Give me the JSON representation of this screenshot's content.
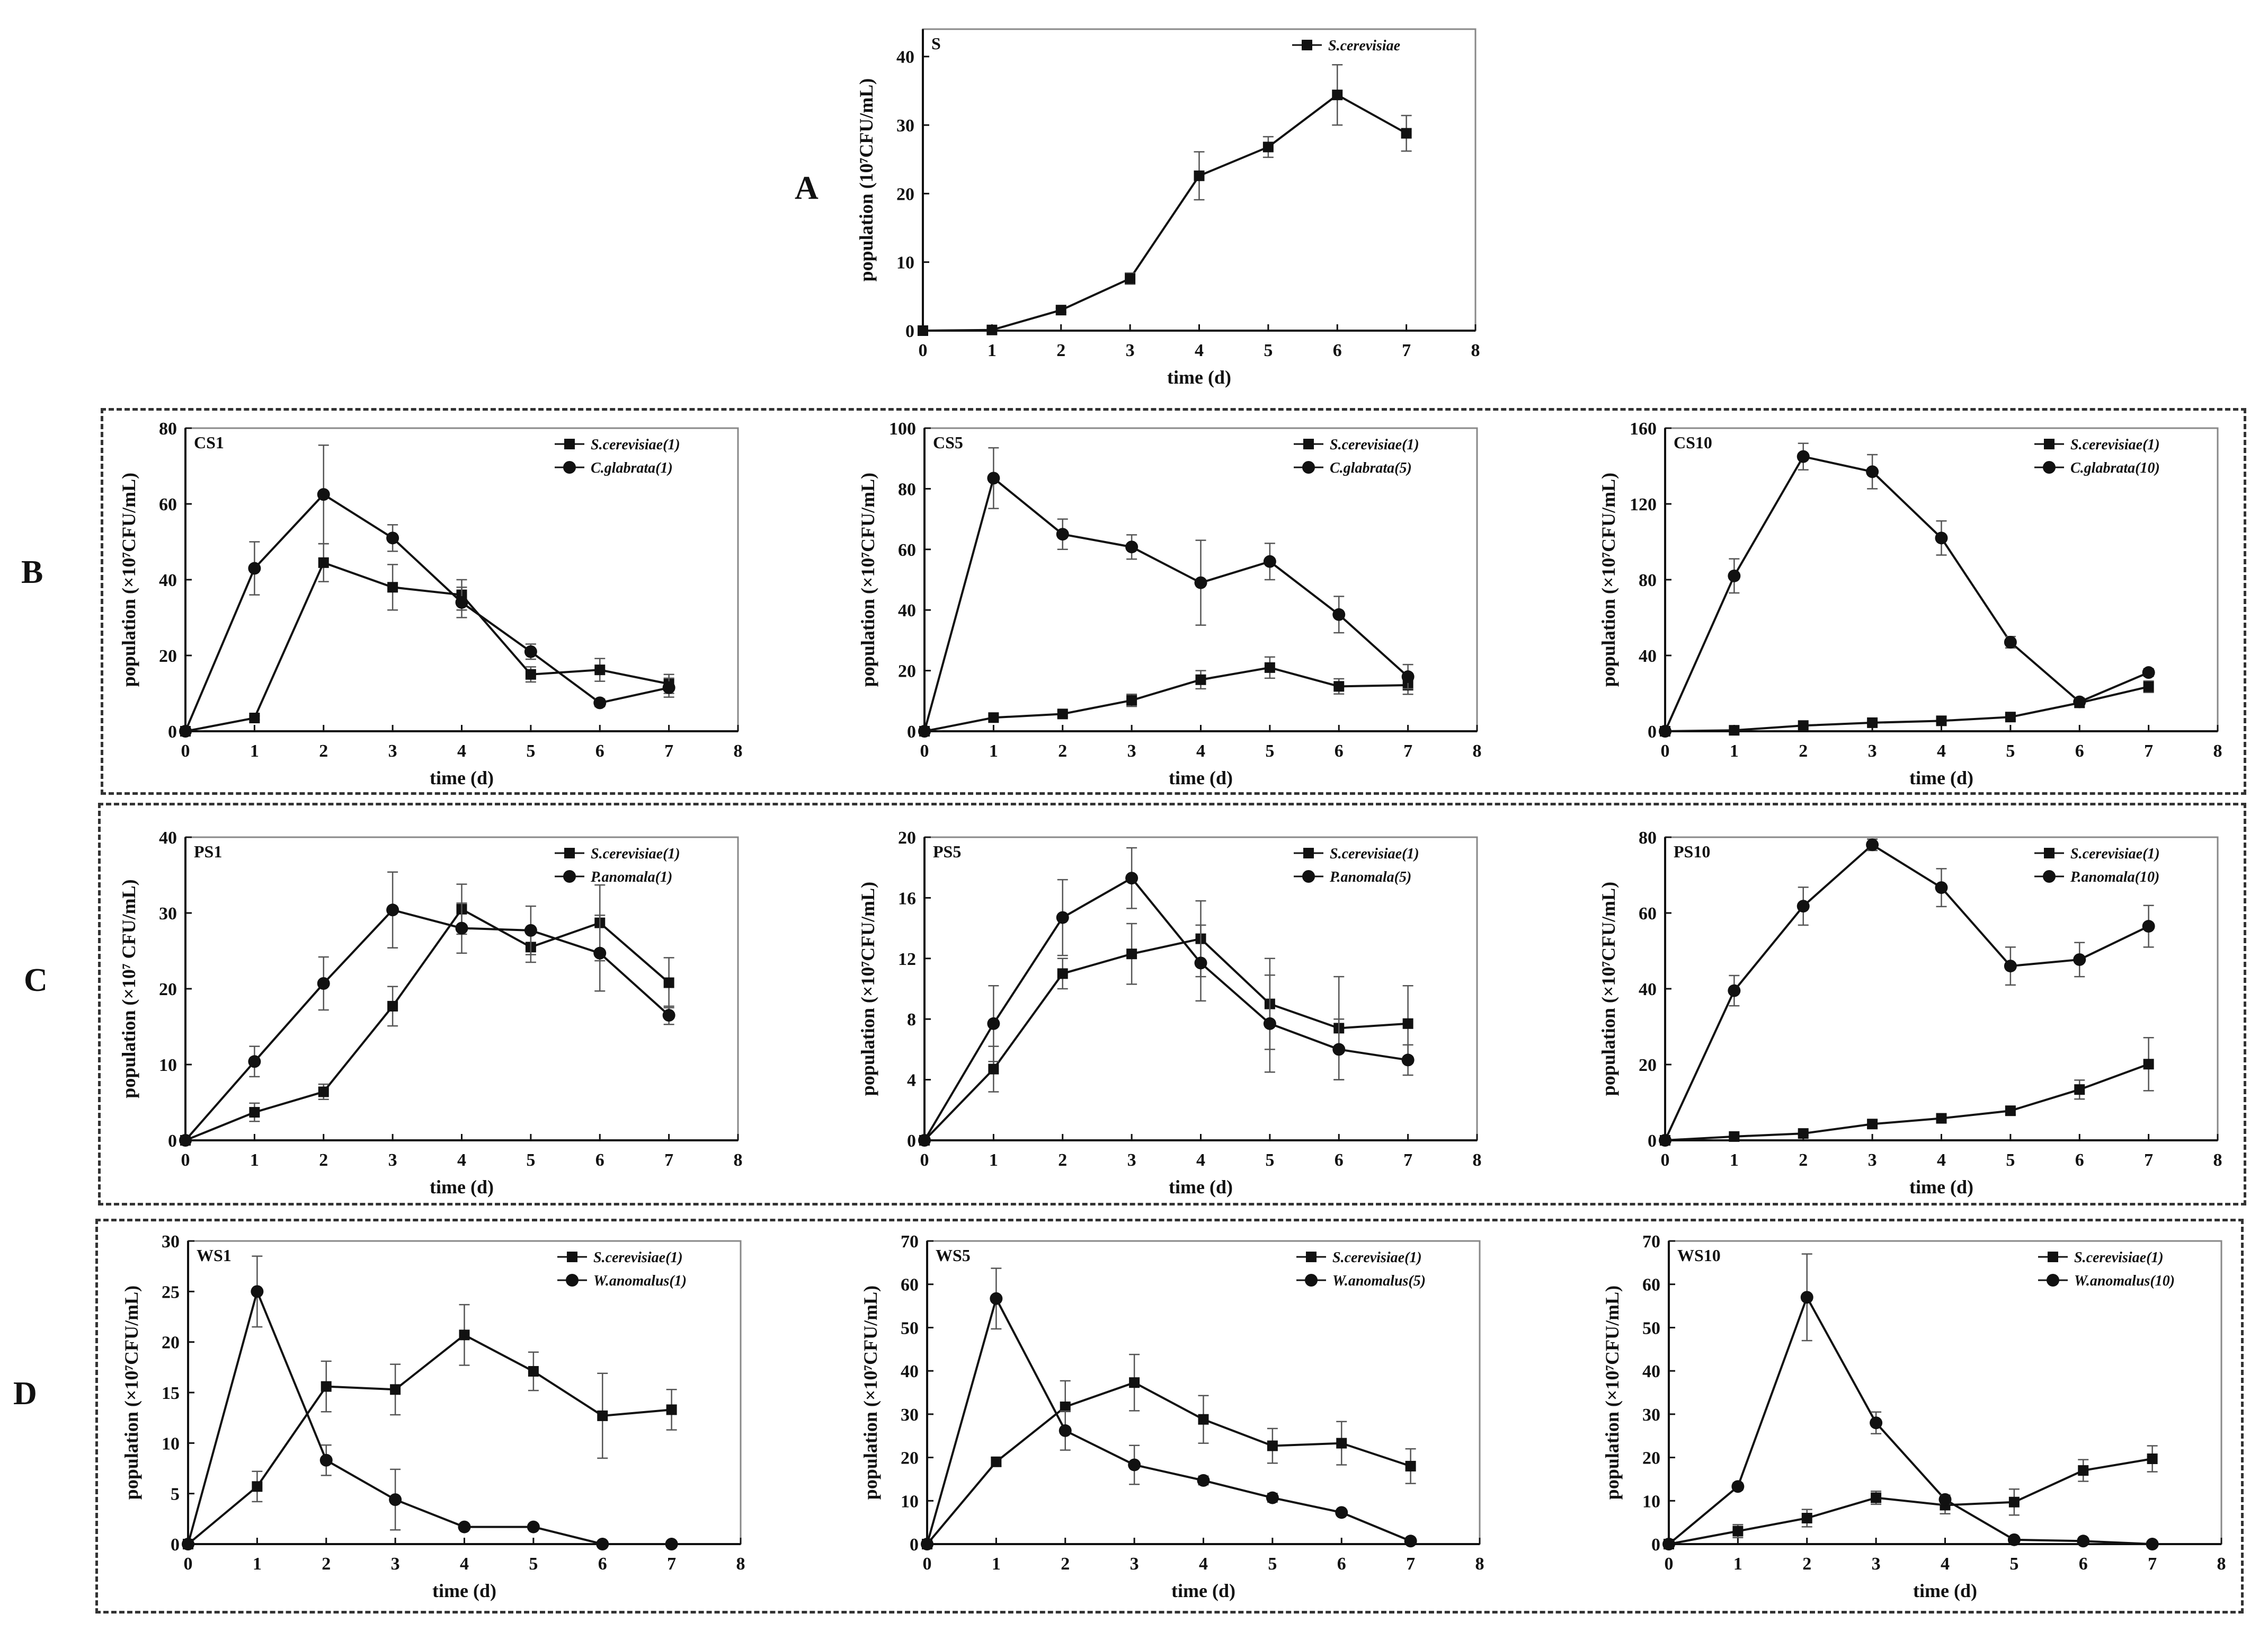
{
  "row_labels": [
    "A",
    "B",
    "C",
    "D"
  ],
  "chart_data": [
    {
      "id": "S",
      "type": "line",
      "panel_label": "S",
      "xlabel": "time (d)",
      "ylabel": "population (10⁷CFU/mL)",
      "xlim": [
        0,
        8
      ],
      "ylim": [
        0,
        44
      ],
      "xticks": [
        0,
        1,
        2,
        3,
        4,
        5,
        6,
        7,
        8
      ],
      "yticks": [
        0,
        10,
        20,
        30,
        40
      ],
      "legend_position": "top-right",
      "series": [
        {
          "name": "S.cerevisiae",
          "marker": "square",
          "x": [
            0,
            1,
            2,
            3,
            4,
            5,
            6,
            7
          ],
          "values": [
            0,
            0.1,
            3,
            7.6,
            22.6,
            26.8,
            34.4,
            28.8
          ],
          "errors": [
            0,
            0.1,
            0.3,
            0.8,
            3.5,
            1.5,
            4.4,
            2.6
          ]
        }
      ]
    },
    {
      "id": "CS1",
      "type": "line",
      "panel_label": "CS1",
      "xlabel": "time (d)",
      "ylabel": "population (×10⁷CFU/mL)",
      "xlim": [
        0,
        8
      ],
      "ylim": [
        0,
        80
      ],
      "xticks": [
        0,
        1,
        2,
        3,
        4,
        5,
        6,
        7,
        8
      ],
      "yticks": [
        0,
        20,
        40,
        60,
        80
      ],
      "legend_position": "top-right",
      "series": [
        {
          "name": "S.cerevisiae(1)",
          "marker": "square",
          "x": [
            0,
            1,
            2,
            3,
            4,
            5,
            6,
            7
          ],
          "values": [
            0,
            3.5,
            44.5,
            38,
            36,
            15,
            16.2,
            12.5
          ],
          "errors": [
            0,
            0.5,
            5,
            6,
            4,
            2,
            3,
            2.5
          ]
        },
        {
          "name": "C.glabrata(1)",
          "marker": "circle",
          "x": [
            0,
            1,
            2,
            3,
            4,
            5,
            6,
            7
          ],
          "values": [
            0,
            43,
            62.5,
            51,
            34,
            21,
            7.5,
            11.5
          ],
          "errors": [
            0,
            7,
            13,
            3.5,
            4,
            2,
            1,
            2.5
          ]
        }
      ]
    },
    {
      "id": "CS5",
      "type": "line",
      "panel_label": "CS5",
      "xlabel": "time (d)",
      "ylabel": "population (×10⁷CFU/mL)",
      "xlim": [
        0,
        8
      ],
      "ylim": [
        0,
        100
      ],
      "xticks": [
        0,
        1,
        2,
        3,
        4,
        5,
        6,
        7,
        8
      ],
      "yticks": [
        0,
        20,
        40,
        60,
        80,
        100
      ],
      "legend_position": "top-right",
      "series": [
        {
          "name": "S.cerevisiae(1)",
          "marker": "square",
          "x": [
            0,
            1,
            2,
            3,
            4,
            5,
            6,
            7
          ],
          "values": [
            0,
            4.5,
            5.7,
            10.2,
            17,
            21,
            14.8,
            15.2
          ],
          "errors": [
            0,
            0.8,
            1,
            2,
            3,
            3.5,
            2.5,
            3
          ]
        },
        {
          "name": "C.glabrata(5)",
          "marker": "circle",
          "x": [
            0,
            1,
            2,
            3,
            4,
            5,
            6,
            7
          ],
          "values": [
            0,
            83.5,
            65,
            60.8,
            49,
            56,
            38.5,
            18
          ],
          "errors": [
            0,
            10,
            5,
            4,
            14,
            6,
            6,
            4
          ]
        }
      ]
    },
    {
      "id": "CS10",
      "type": "line",
      "panel_label": "CS10",
      "xlabel": "time (d)",
      "ylabel": "population (×10⁷CFU/mL)",
      "xlim": [
        0,
        8
      ],
      "ylim": [
        0,
        160
      ],
      "xticks": [
        0,
        1,
        2,
        3,
        4,
        5,
        6,
        7,
        8
      ],
      "yticks": [
        0,
        40,
        80,
        120,
        160
      ],
      "legend_position": "top-right",
      "series": [
        {
          "name": "S.cerevisiae(1)",
          "marker": "square",
          "x": [
            0,
            1,
            2,
            3,
            4,
            5,
            6,
            7
          ],
          "values": [
            0,
            0.5,
            3,
            4.5,
            5.5,
            7.5,
            15,
            23.5
          ],
          "errors": [
            0,
            0.3,
            0.5,
            0.8,
            1,
            1.5,
            2,
            3
          ]
        },
        {
          "name": "C.glabrata(10)",
          "marker": "circle",
          "x": [
            0,
            1,
            2,
            3,
            4,
            5,
            6,
            7
          ],
          "values": [
            0,
            82,
            145,
            137,
            102,
            47,
            15.5,
            31
          ],
          "errors": [
            0,
            9,
            7,
            9,
            9,
            3,
            2,
            2
          ]
        }
      ]
    },
    {
      "id": "PS1",
      "type": "line",
      "panel_label": "PS1",
      "xlabel": "time (d)",
      "ylabel": "population (×10⁷ CFU/mL)",
      "xlim": [
        0,
        8
      ],
      "ylim": [
        0,
        40
      ],
      "xticks": [
        0,
        1,
        2,
        3,
        4,
        5,
        6,
        7,
        8
      ],
      "yticks": [
        0,
        10,
        20,
        30,
        40
      ],
      "legend_position": "top-right",
      "series": [
        {
          "name": "S.cerevisiae(1)",
          "marker": "square",
          "x": [
            0,
            1,
            2,
            3,
            4,
            5,
            6,
            7
          ],
          "values": [
            0,
            3.7,
            6.4,
            17.7,
            30.5,
            25.5,
            28.7,
            20.8
          ],
          "errors": [
            0,
            1.2,
            1,
            2.6,
            3.3,
            2,
            5,
            3.3
          ]
        },
        {
          "name": "P.anomala(1)",
          "marker": "circle",
          "x": [
            0,
            1,
            2,
            3,
            4,
            5,
            6,
            7
          ],
          "values": [
            0,
            10.4,
            20.7,
            30.4,
            28,
            27.7,
            24.7,
            16.5
          ],
          "errors": [
            0,
            2,
            3.5,
            5,
            3.3,
            3.2,
            5,
            1.2
          ]
        }
      ]
    },
    {
      "id": "PS5",
      "type": "line",
      "panel_label": "PS5",
      "xlabel": "time (d)",
      "ylabel": "population (×10⁷CFU/mL)",
      "xlim": [
        0,
        8
      ],
      "ylim": [
        0,
        20
      ],
      "xticks": [
        0,
        1,
        2,
        3,
        4,
        5,
        6,
        7,
        8
      ],
      "yticks": [
        0,
        4,
        8,
        12,
        16,
        20
      ],
      "legend_position": "top-right",
      "series": [
        {
          "name": "S.cerevisiae(1)",
          "marker": "square",
          "x": [
            0,
            1,
            2,
            3,
            4,
            5,
            6,
            7
          ],
          "values": [
            0,
            4.7,
            11,
            12.3,
            13.3,
            9,
            7.4,
            7.7
          ],
          "errors": [
            0,
            1.5,
            1,
            2,
            2.5,
            3,
            3.4,
            2.5
          ]
        },
        {
          "name": "P.anomala(5)",
          "marker": "circle",
          "x": [
            0,
            1,
            2,
            3,
            4,
            5,
            6,
            7
          ],
          "values": [
            0,
            7.7,
            14.7,
            17.3,
            11.7,
            7.7,
            6,
            5.3
          ],
          "errors": [
            0,
            2.5,
            2.5,
            2,
            2.5,
            3.2,
            2,
            1
          ]
        }
      ]
    },
    {
      "id": "PS10",
      "type": "line",
      "panel_label": "PS10",
      "xlabel": "time (d)",
      "ylabel": "population (×10⁷CFU/mL)",
      "xlim": [
        0,
        8
      ],
      "ylim": [
        0,
        80
      ],
      "xticks": [
        0,
        1,
        2,
        3,
        4,
        5,
        6,
        7,
        8
      ],
      "yticks": [
        0,
        20,
        40,
        60,
        80
      ],
      "legend_position": "top-right",
      "series": [
        {
          "name": "S.cerevisiae(1)",
          "marker": "square",
          "x": [
            0,
            1,
            2,
            3,
            4,
            5,
            6,
            7
          ],
          "values": [
            0,
            1,
            1.8,
            4.3,
            5.8,
            7.8,
            13.4,
            20.1
          ],
          "errors": [
            0,
            0.5,
            0.5,
            1,
            1.2,
            1,
            2.5,
            7
          ]
        },
        {
          "name": "P.anomala(10)",
          "marker": "circle",
          "x": [
            0,
            1,
            2,
            3,
            4,
            5,
            6,
            7
          ],
          "values": [
            0,
            39.5,
            61.8,
            78,
            66.7,
            46,
            47.7,
            56.5
          ],
          "errors": [
            0,
            4,
            5,
            1.5,
            5,
            5,
            4.5,
            5.5
          ]
        }
      ]
    },
    {
      "id": "WS1",
      "type": "line",
      "panel_label": "WS1",
      "xlabel": "time (d)",
      "ylabel": "population (×10⁷CFU/mL)",
      "xlim": [
        0,
        8
      ],
      "ylim": [
        0,
        30
      ],
      "xticks": [
        0,
        1,
        2,
        3,
        4,
        5,
        6,
        7,
        8
      ],
      "yticks": [
        0,
        5,
        10,
        15,
        20,
        25,
        30
      ],
      "legend_position": "top-right",
      "series": [
        {
          "name": "S.cerevisiae(1)",
          "marker": "square",
          "x": [
            0,
            1,
            2,
            3,
            4,
            5,
            6,
            7
          ],
          "values": [
            0,
            5.7,
            15.6,
            15.3,
            20.7,
            17.1,
            12.7,
            13.3
          ],
          "errors": [
            0,
            1.5,
            2.5,
            2.5,
            3,
            1.9,
            4.2,
            2
          ]
        },
        {
          "name": "W.anomalus(1)",
          "marker": "circle",
          "x": [
            0,
            1,
            2,
            3,
            4,
            5,
            6,
            7
          ],
          "values": [
            0,
            25,
            8.3,
            4.4,
            1.7,
            1.7,
            0,
            0
          ],
          "errors": [
            0,
            3.5,
            1.5,
            3,
            0.2,
            0.2,
            0,
            0
          ]
        }
      ]
    },
    {
      "id": "WS5",
      "type": "line",
      "panel_label": "WS5",
      "xlabel": "time (d)",
      "ylabel": "population (×10⁷CFU/mL)",
      "xlim": [
        0,
        8
      ],
      "ylim": [
        0,
        70
      ],
      "xticks": [
        0,
        1,
        2,
        3,
        4,
        5,
        6,
        7,
        8
      ],
      "yticks": [
        0,
        10,
        20,
        30,
        40,
        50,
        60,
        70
      ],
      "legend_position": "top-right",
      "series": [
        {
          "name": "S.cerevisiae(1)",
          "marker": "square",
          "x": [
            0,
            1,
            2,
            3,
            4,
            5,
            6,
            7
          ],
          "values": [
            0,
            19,
            31.7,
            37.3,
            28.8,
            22.7,
            23.3,
            18
          ],
          "errors": [
            0,
            1,
            6,
            6.5,
            5.5,
            4,
            5,
            4
          ]
        },
        {
          "name": "W.anomalus(5)",
          "marker": "circle",
          "x": [
            0,
            1,
            2,
            3,
            4,
            5,
            6,
            7
          ],
          "values": [
            0,
            56.7,
            26.2,
            18.3,
            14.7,
            10.7,
            7.3,
            0.7
          ],
          "errors": [
            0,
            7,
            4.5,
            4.5,
            1,
            1,
            0.5,
            0.3
          ]
        }
      ]
    },
    {
      "id": "WS10",
      "type": "line",
      "panel_label": "WS10",
      "xlabel": "time (d)",
      "ylabel": "population (×10⁷CFU/mL)",
      "xlim": [
        0,
        8
      ],
      "ylim": [
        0,
        70
      ],
      "xticks": [
        0,
        1,
        2,
        3,
        4,
        5,
        6,
        7,
        8
      ],
      "yticks": [
        0,
        10,
        20,
        30,
        40,
        50,
        60,
        70
      ],
      "legend_position": "top-right",
      "series": [
        {
          "name": "S.cerevisiae(1)",
          "marker": "square",
          "x": [
            0,
            1,
            2,
            3,
            4,
            5,
            6,
            7
          ],
          "values": [
            0,
            3,
            6,
            10.7,
            9,
            9.7,
            17,
            19.7
          ],
          "errors": [
            0,
            1.5,
            2,
            1.5,
            2,
            3,
            2.5,
            3
          ]
        },
        {
          "name": "W.anomalus(10)",
          "marker": "circle",
          "x": [
            0,
            1,
            2,
            3,
            4,
            5,
            6,
            7
          ],
          "values": [
            0,
            13.3,
            57,
            28,
            10.3,
            1,
            0.7,
            0
          ],
          "errors": [
            0,
            0.8,
            10,
            2.5,
            1,
            0.3,
            0.2,
            0
          ]
        }
      ]
    }
  ]
}
